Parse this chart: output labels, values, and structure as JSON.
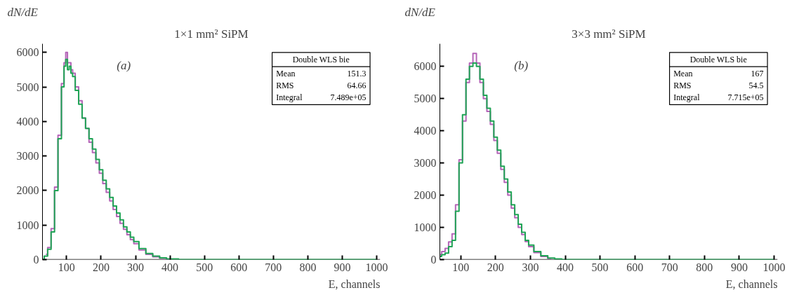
{
  "chart_data": [
    {
      "type": "step",
      "title": "1×1 mm² SiPM",
      "xlabel": "E, channels",
      "ylabel": "dN/dE",
      "x": [
        30,
        40,
        50,
        60,
        70,
        80,
        90,
        95,
        100,
        105,
        110,
        115,
        120,
        130,
        140,
        150,
        160,
        170,
        180,
        190,
        200,
        210,
        220,
        230,
        240,
        250,
        260,
        270,
        280,
        290,
        300,
        320,
        340,
        360,
        380,
        400,
        450,
        500,
        600,
        700,
        800,
        900,
        1000
      ],
      "series": [
        {
          "color": "#b565b8",
          "x": [
            40,
            50,
            60,
            70,
            80,
            90,
            95,
            100,
            105,
            110,
            115,
            120,
            130,
            140,
            150,
            160,
            170,
            180,
            190,
            200,
            210,
            220,
            230,
            240,
            250,
            260,
            270,
            280,
            290,
            300,
            320,
            340,
            360,
            380,
            400
          ],
          "values": [
            150,
            350,
            900,
            2100,
            3600,
            5100,
            5700,
            6000,
            5700,
            5700,
            5500,
            5400,
            5000,
            4600,
            4100,
            3800,
            3400,
            3100,
            2800,
            2500,
            2200,
            1950,
            1700,
            1450,
            1250,
            1050,
            880,
            720,
            580,
            460,
            280,
            150,
            80,
            40,
            10
          ]
        },
        {
          "color": "#1fa455",
          "values": [
            0,
            100,
            300,
            800,
            2000,
            3500,
            5000,
            5600,
            5800,
            5500,
            5600,
            5400,
            5300,
            4900,
            4500,
            4100,
            3800,
            3500,
            3200,
            2900,
            2600,
            2300,
            2050,
            1800,
            1550,
            1350,
            1150,
            950,
            800,
            650,
            520,
            320,
            180,
            100,
            50,
            20,
            0,
            0,
            0,
            0,
            0,
            0,
            0
          ]
        }
      ],
      "xlim": [
        30,
        1010
      ],
      "ylim": [
        0,
        6250
      ],
      "xticks": [
        100,
        200,
        300,
        400,
        500,
        600,
        700,
        800,
        900,
        1000
      ],
      "yticks": [
        0,
        1000,
        2000,
        3000,
        4000,
        5000,
        6000
      ],
      "grid": false,
      "annotations": [
        "(a)",
        "Double WLS bie",
        "Mean",
        "151.3",
        "RMS",
        "64.66",
        "Integral",
        "7.489e+05"
      ]
    },
    {
      "type": "step",
      "title": "3×3 mm² SiPM",
      "xlabel": "E, channels",
      "ylabel": "dN/dE",
      "x": [
        40,
        50,
        60,
        70,
        80,
        90,
        100,
        110,
        120,
        130,
        140,
        150,
        160,
        170,
        180,
        190,
        200,
        210,
        220,
        230,
        240,
        250,
        260,
        270,
        280,
        290,
        300,
        320,
        340,
        360,
        380,
        400,
        450,
        500,
        600,
        700,
        800,
        900,
        1000
      ],
      "series": [
        {
          "color": "#b565b8",
          "x": [
            40,
            50,
            60,
            70,
            80,
            90,
            100,
            110,
            120,
            130,
            140,
            150,
            160,
            170,
            180,
            190,
            200,
            210,
            220,
            230,
            240,
            250,
            260,
            270,
            280,
            290,
            300,
            320,
            340,
            360
          ],
          "values": [
            150,
            250,
            350,
            550,
            800,
            1700,
            3100,
            4300,
            5500,
            6100,
            6400,
            6100,
            5500,
            5000,
            4600,
            4200,
            3700,
            3300,
            2800,
            2400,
            2000,
            1600,
            1300,
            1000,
            780,
            560,
            400,
            220,
            100,
            30
          ]
        },
        {
          "color": "#1fa455",
          "values": [
            100,
            150,
            200,
            400,
            600,
            1500,
            3000,
            4500,
            5600,
            6000,
            6100,
            6000,
            5600,
            5100,
            4700,
            4300,
            3800,
            3400,
            2900,
            2500,
            2100,
            1700,
            1400,
            1100,
            850,
            600,
            450,
            250,
            120,
            50,
            20,
            0,
            0,
            0,
            0,
            0,
            0,
            0,
            0
          ]
        }
      ],
      "xlim": [
        40,
        1010
      ],
      "ylim": [
        0,
        6700
      ],
      "xticks": [
        100,
        200,
        300,
        400,
        500,
        600,
        700,
        800,
        900,
        1000
      ],
      "yticks": [
        0,
        1000,
        2000,
        3000,
        4000,
        5000,
        6000
      ],
      "grid": false,
      "annotations": [
        "(b)",
        "Double WLS bie",
        "Mean",
        "167",
        "RMS",
        "54.5",
        "Integral",
        "7.715e+05"
      ]
    }
  ]
}
